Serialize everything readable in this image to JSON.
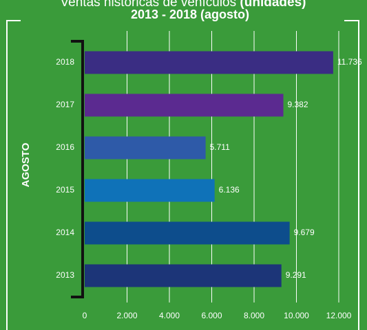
{
  "chart_data": {
    "type": "barh",
    "title": "Ventas históricas de vehículos",
    "title_units": "(unidades)",
    "subtitle": "2013 - 2018 (agosto)",
    "ylabel": "AGOSTO",
    "categories": [
      "2018",
      "2017",
      "2016",
      "2015",
      "2014",
      "2013"
    ],
    "values": [
      11736,
      9382,
      5711,
      6136,
      9679,
      9291
    ],
    "value_labels": [
      "11.736",
      "9.382",
      "5.711",
      "6.136",
      "9.679",
      "9.291"
    ],
    "colors": [
      "#3a2d83",
      "#5b2a90",
      "#2e5aa8",
      "#0f72b8",
      "#0d4d8c",
      "#1c3578"
    ],
    "xlim": [
      0,
      12000
    ],
    "xticks": [
      0,
      {
        "value": 2000,
        "label": "2.000"
      },
      {
        "value": 4000,
        "label": "4.000"
      },
      {
        "value": 6000,
        "label": "6.000"
      },
      {
        "value": 8000,
        "label": "8.000"
      },
      {
        "value": 10000,
        "label": "10.000"
      },
      {
        "value": 12000,
        "label": "12.000"
      }
    ],
    "grid": true
  }
}
